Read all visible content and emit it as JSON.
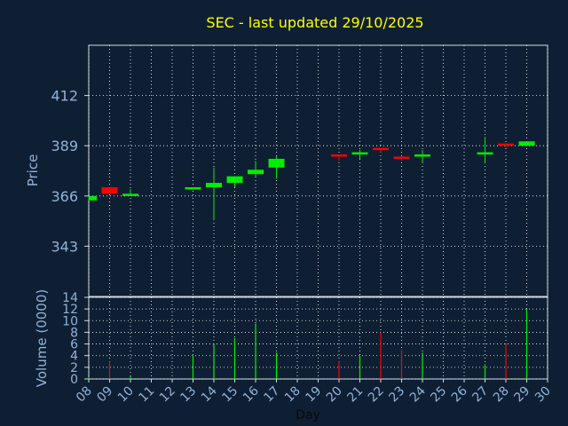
{
  "chart_data": [
    {
      "type": "candlestick",
      "title": "SEC - last updated 29/10/2025",
      "xlabel": "",
      "ylabel": "Price",
      "ylim": [
        320,
        435
      ],
      "yticks": [
        343,
        366,
        389,
        412
      ],
      "grid": true,
      "colors": {
        "up": "#00ee00",
        "down": "#ff0000",
        "title": "#ffff00",
        "axis_text": "#8fb3d9",
        "background": "#0f1f33",
        "grid": "#ffffff"
      },
      "candles": [
        {
          "day": 8,
          "open": 364,
          "close": 366,
          "high": 366,
          "low": 364,
          "dir": "up"
        },
        {
          "day": 9,
          "open": 370,
          "close": 367,
          "high": 370,
          "low": 367,
          "dir": "down"
        },
        {
          "day": 10,
          "open": 366,
          "close": 367,
          "high": 369,
          "low": 366,
          "dir": "up"
        },
        {
          "day": 13,
          "open": 369,
          "close": 370,
          "high": 370,
          "low": 369,
          "dir": "up"
        },
        {
          "day": 14,
          "open": 370,
          "close": 372,
          "high": 379,
          "low": 355,
          "dir": "up"
        },
        {
          "day": 15,
          "open": 372,
          "close": 375,
          "high": 375,
          "low": 370,
          "dir": "up"
        },
        {
          "day": 16,
          "open": 376,
          "close": 378,
          "high": 382,
          "low": 375,
          "dir": "up"
        },
        {
          "day": 17,
          "open": 379,
          "close": 383,
          "high": 384,
          "low": 374,
          "dir": "up"
        },
        {
          "day": 20,
          "open": 385,
          "close": 384,
          "high": 385,
          "low": 382,
          "dir": "down"
        },
        {
          "day": 21,
          "open": 385,
          "close": 386,
          "high": 387,
          "low": 383,
          "dir": "up"
        },
        {
          "day": 22,
          "open": 388,
          "close": 387,
          "high": 388,
          "low": 386,
          "dir": "down"
        },
        {
          "day": 23,
          "open": 384,
          "close": 383,
          "high": 384,
          "low": 382,
          "dir": "down"
        },
        {
          "day": 24,
          "open": 384,
          "close": 385,
          "high": 387,
          "low": 381,
          "dir": "up"
        },
        {
          "day": 27,
          "open": 385,
          "close": 386,
          "high": 393,
          "low": 381,
          "dir": "up"
        },
        {
          "day": 28,
          "open": 390,
          "close": 389,
          "high": 390,
          "low": 388,
          "dir": "down"
        },
        {
          "day": 29,
          "open": 389,
          "close": 391,
          "high": 391,
          "low": 389,
          "dir": "up"
        }
      ]
    },
    {
      "type": "bar",
      "title": "",
      "xlabel": "Day",
      "ylabel": "Volume (0000)",
      "ylim": [
        0,
        14
      ],
      "yticks": [
        0,
        2,
        4,
        6,
        8,
        10,
        12,
        14
      ],
      "xticks": [
        "08",
        "09",
        "10",
        "11",
        "12",
        "13",
        "14",
        "15",
        "16",
        "17",
        "18",
        "19",
        "20",
        "21",
        "22",
        "23",
        "24",
        "25",
        "26",
        "27",
        "28",
        "29",
        "30"
      ],
      "xlim": [
        8,
        30
      ],
      "grid": true,
      "bars": [
        {
          "day": 8,
          "value": 0.3,
          "dir": "up"
        },
        {
          "day": 9,
          "value": 3,
          "dir": "down"
        },
        {
          "day": 10,
          "value": 0.5,
          "dir": "up"
        },
        {
          "day": 13,
          "value": 4,
          "dir": "up"
        },
        {
          "day": 14,
          "value": 6,
          "dir": "up"
        },
        {
          "day": 15,
          "value": 7,
          "dir": "up"
        },
        {
          "day": 16,
          "value": 9.5,
          "dir": "up"
        },
        {
          "day": 17,
          "value": 4.5,
          "dir": "up"
        },
        {
          "day": 20,
          "value": 3,
          "dir": "down"
        },
        {
          "day": 21,
          "value": 4,
          "dir": "up"
        },
        {
          "day": 22,
          "value": 8,
          "dir": "down"
        },
        {
          "day": 23,
          "value": 5,
          "dir": "down"
        },
        {
          "day": 24,
          "value": 4.5,
          "dir": "up"
        },
        {
          "day": 27,
          "value": 2.5,
          "dir": "up"
        },
        {
          "day": 28,
          "value": 6,
          "dir": "down"
        },
        {
          "day": 29,
          "value": 12,
          "dir": "up"
        }
      ]
    }
  ]
}
